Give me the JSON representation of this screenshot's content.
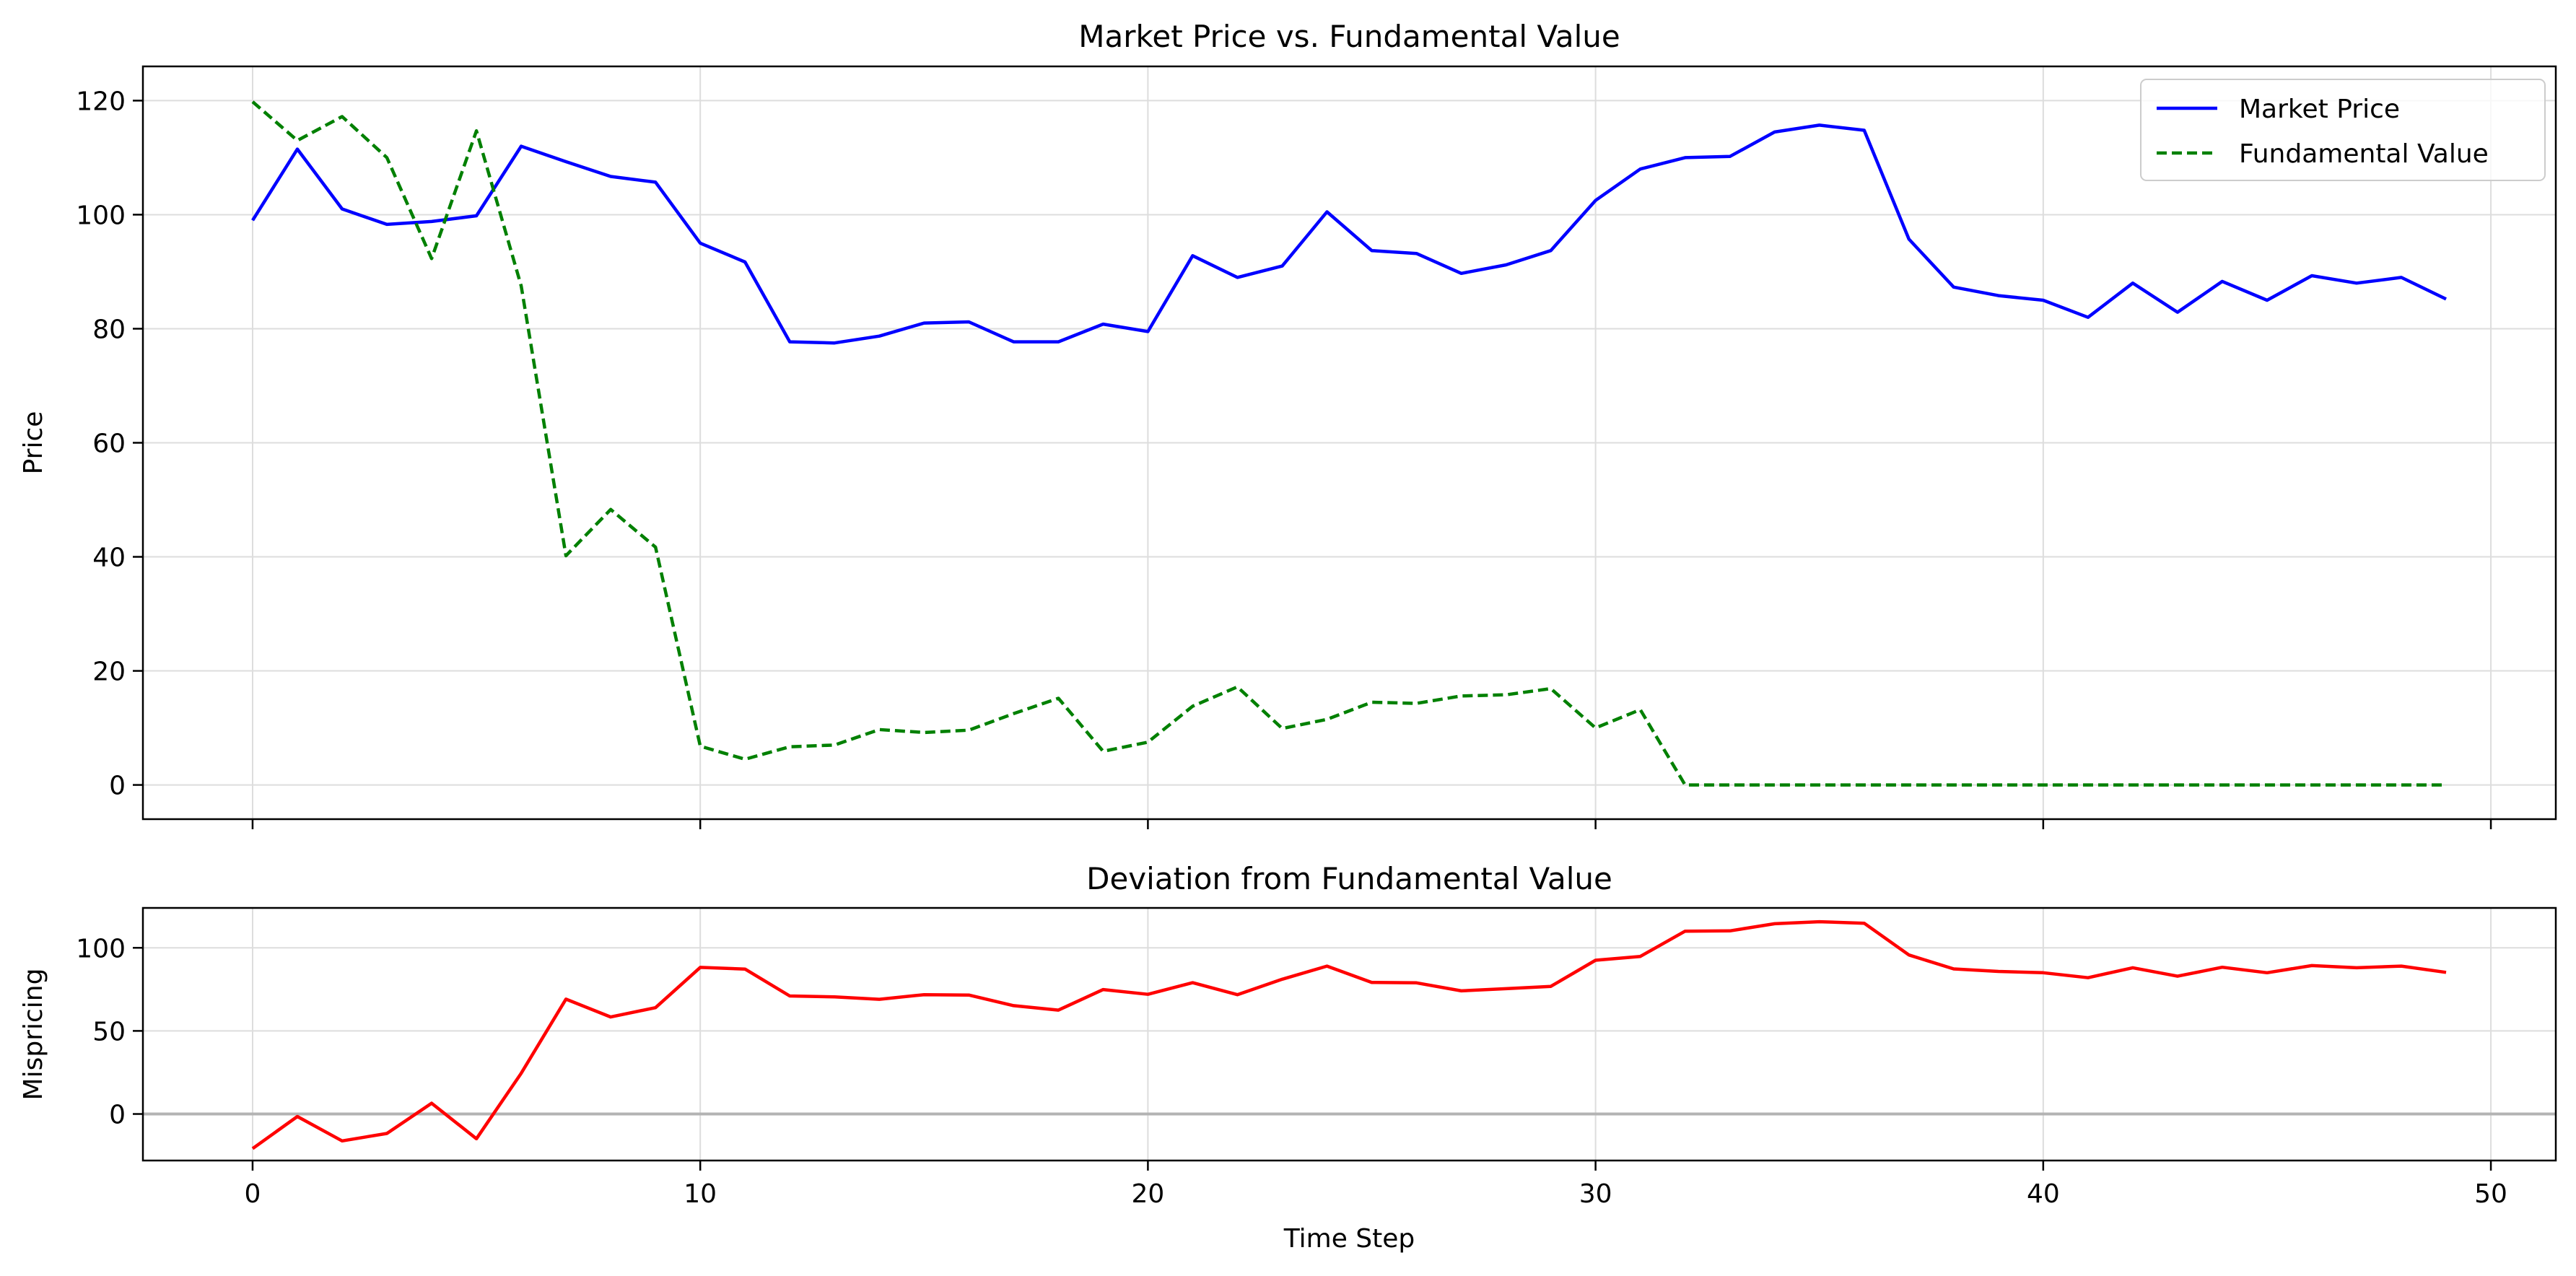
{
  "chart_data": [
    {
      "type": "line",
      "title": "Market Price vs. Fundamental Value",
      "xlabel": "",
      "ylabel": "Price",
      "xlim": [
        -2.45,
        51.45
      ],
      "ylim": [
        -6,
        126
      ],
      "xticks": [
        0,
        10,
        20,
        30,
        40,
        50
      ],
      "xtick_labels": [
        "",
        "",
        "",
        "",
        "",
        ""
      ],
      "yticks": [
        0,
        20,
        40,
        60,
        80,
        100,
        120
      ],
      "ytick_labels": [
        "0",
        "20",
        "40",
        "60",
        "80",
        "100",
        "120"
      ],
      "grid": true,
      "legend": "top-right",
      "x": [
        0,
        1,
        2,
        3,
        4,
        5,
        6,
        7,
        8,
        9,
        10,
        11,
        12,
        13,
        14,
        15,
        16,
        17,
        18,
        19,
        20,
        21,
        22,
        23,
        24,
        25,
        26,
        27,
        28,
        29,
        30,
        31,
        32,
        33,
        34,
        35,
        36,
        37,
        38,
        39,
        40,
        41,
        42,
        43,
        44,
        45,
        46,
        47,
        48,
        49
      ],
      "series": [
        {
          "name": "Market Price",
          "color": "#0000ff",
          "style": "solid",
          "values": [
            99,
            111.5,
            101,
            98.3,
            98.8,
            99.8,
            112,
            109.3,
            106.7,
            105.7,
            95,
            91.7,
            77.7,
            77.5,
            78.7,
            81,
            81.2,
            77.7,
            77.7,
            80.8,
            79.5,
            92.8,
            89,
            91,
            100.5,
            93.7,
            93.2,
            89.7,
            91.2,
            93.7,
            102.5,
            108,
            110,
            110.2,
            114.5,
            115.7,
            114.8,
            95.7,
            87.3,
            85.8,
            85,
            82,
            88,
            82.9,
            88.3,
            85,
            89.3,
            88,
            89,
            85.2
          ]
        },
        {
          "name": "Fundamental Value",
          "color": "#008000",
          "style": "dashed",
          "values": [
            119.8,
            113,
            117.2,
            110,
            92.3,
            114.7,
            87.5,
            40.2,
            48.3,
            41.7,
            6.8,
            4.5,
            6.7,
            7,
            9.7,
            9.2,
            9.6,
            12.5,
            15.2,
            5.9,
            7.5,
            13.8,
            17.2,
            9.9,
            11.5,
            14.5,
            14.3,
            15.6,
            15.8,
            16.9,
            10,
            13.2,
            0,
            0,
            0,
            0,
            0,
            0,
            0,
            0,
            0,
            0,
            0,
            0,
            0,
            0,
            0,
            0,
            0,
            0
          ]
        }
      ]
    },
    {
      "type": "line",
      "title": "Deviation from Fundamental Value",
      "xlabel": "Time Step",
      "ylabel": "Mispricing",
      "xlim": [
        -2.45,
        51.45
      ],
      "ylim": [
        -28,
        124
      ],
      "xticks": [
        0,
        10,
        20,
        30,
        40,
        50
      ],
      "xtick_labels": [
        "0",
        "10",
        "20",
        "30",
        "40",
        "50"
      ],
      "yticks": [
        0,
        50,
        100
      ],
      "ytick_labels": [
        "0",
        "50",
        "100"
      ],
      "grid": true,
      "reference_line": {
        "y": 0,
        "color": "#b3b3b3"
      },
      "x": [
        0,
        1,
        2,
        3,
        4,
        5,
        6,
        7,
        8,
        9,
        10,
        11,
        12,
        13,
        14,
        15,
        16,
        17,
        18,
        19,
        20,
        21,
        22,
        23,
        24,
        25,
        26,
        27,
        28,
        29,
        30,
        31,
        32,
        33,
        34,
        35,
        36,
        37,
        38,
        39,
        40,
        41,
        42,
        43,
        44,
        45,
        46,
        47,
        48,
        49
      ],
      "series": [
        {
          "color": "#ff0000",
          "style": "solid",
          "values": [
            -20.8,
            -1.5,
            -16.2,
            -11.7,
            6.5,
            -14.9,
            24.5,
            69.1,
            58.4,
            64,
            88.2,
            87.2,
            71,
            70.5,
            69,
            71.8,
            71.6,
            65.2,
            62.5,
            74.9,
            72,
            79,
            71.8,
            81.1,
            89,
            79.2,
            78.9,
            74.1,
            75.4,
            76.8,
            92.5,
            94.8,
            110,
            110.2,
            114.5,
            115.7,
            114.8,
            95.7,
            87.3,
            85.8,
            85,
            82,
            88,
            82.9,
            88.3,
            85,
            89.3,
            88,
            89,
            85.2
          ]
        }
      ]
    }
  ]
}
